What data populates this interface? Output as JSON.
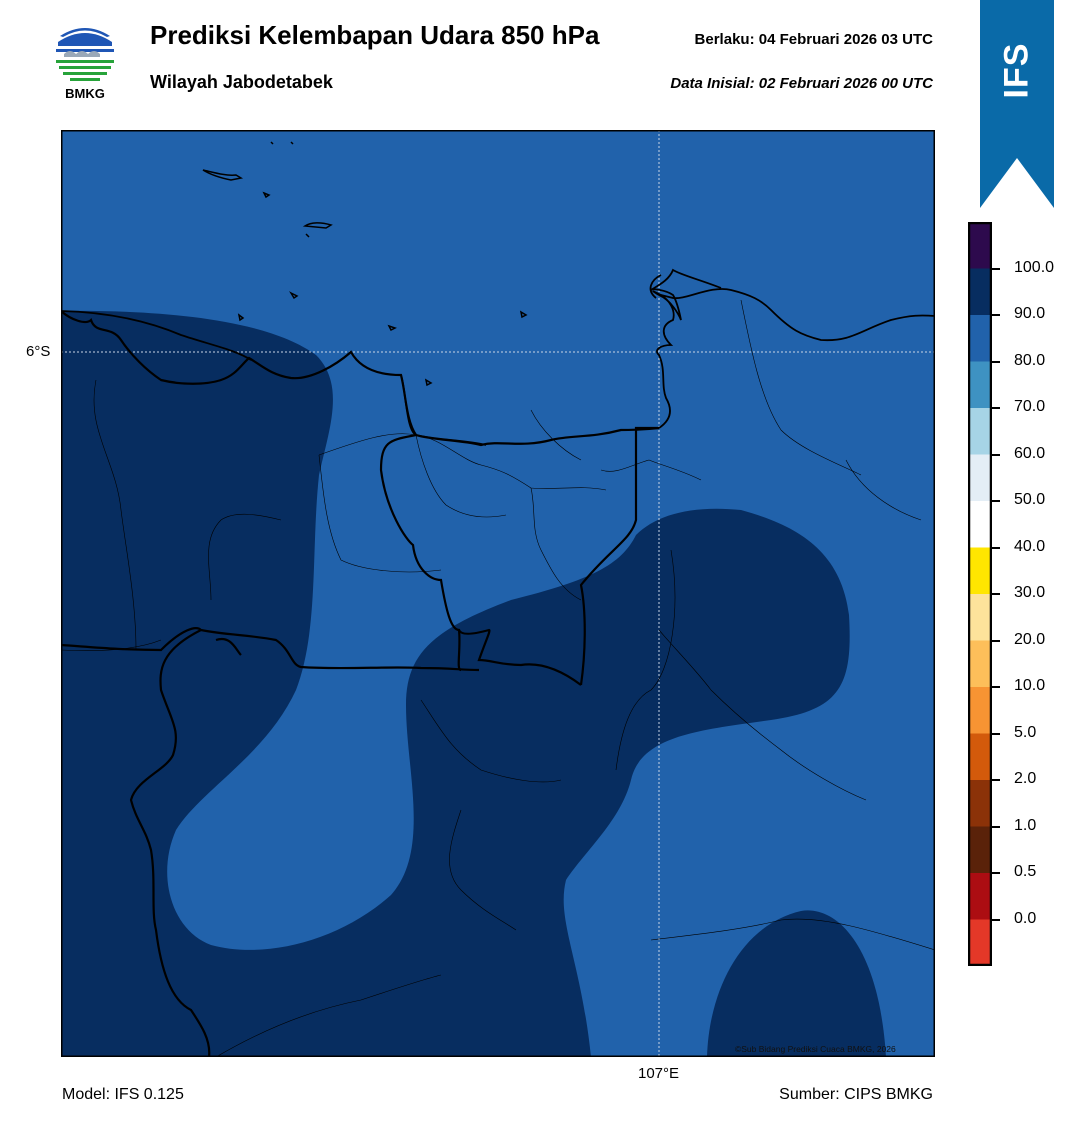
{
  "header": {
    "title": "Prediksi Kelembapan Udara 850 hPa",
    "subtitle": "Wilayah Jabodetabek",
    "valid_time": "Berlaku:  04 Februari 2026 03 UTC",
    "init_time": "Data Inisial:  02 Februari 2026 00 UTC"
  },
  "logo": {
    "text": "BMKG"
  },
  "badge": {
    "text": "IFS",
    "color": "#0a6aa8"
  },
  "map": {
    "lat_label": "6°S",
    "lon_label": "107°E",
    "copyright": "©Sub Bidang Prediksi Cuaca BMKG, 2026",
    "fill_colors": {
      "humidity_80_90": "#2162ab",
      "humidity_90_100": "#072d60"
    }
  },
  "footer": {
    "model": "Model: IFS 0.125",
    "source": "Sumber: CIPS BMKG"
  },
  "legend": {
    "colors": [
      "#2d0a4d",
      "#072d60",
      "#2162ab",
      "#3e92c2",
      "#a6d4e6",
      "#e4eef6",
      "#ffffff",
      "#ffe600",
      "#fde39b",
      "#fdbf5a",
      "#f79433",
      "#d35a0b",
      "#8b3208",
      "#5a2209",
      "#ac0d12",
      "#e43828"
    ],
    "labels": [
      "100.0",
      "90.0",
      "80.0",
      "70.0",
      "60.0",
      "50.0",
      "40.0",
      "30.0",
      "20.0",
      "10.0",
      "5.0",
      "2.0",
      "1.0",
      "0.5",
      "0.0"
    ]
  }
}
